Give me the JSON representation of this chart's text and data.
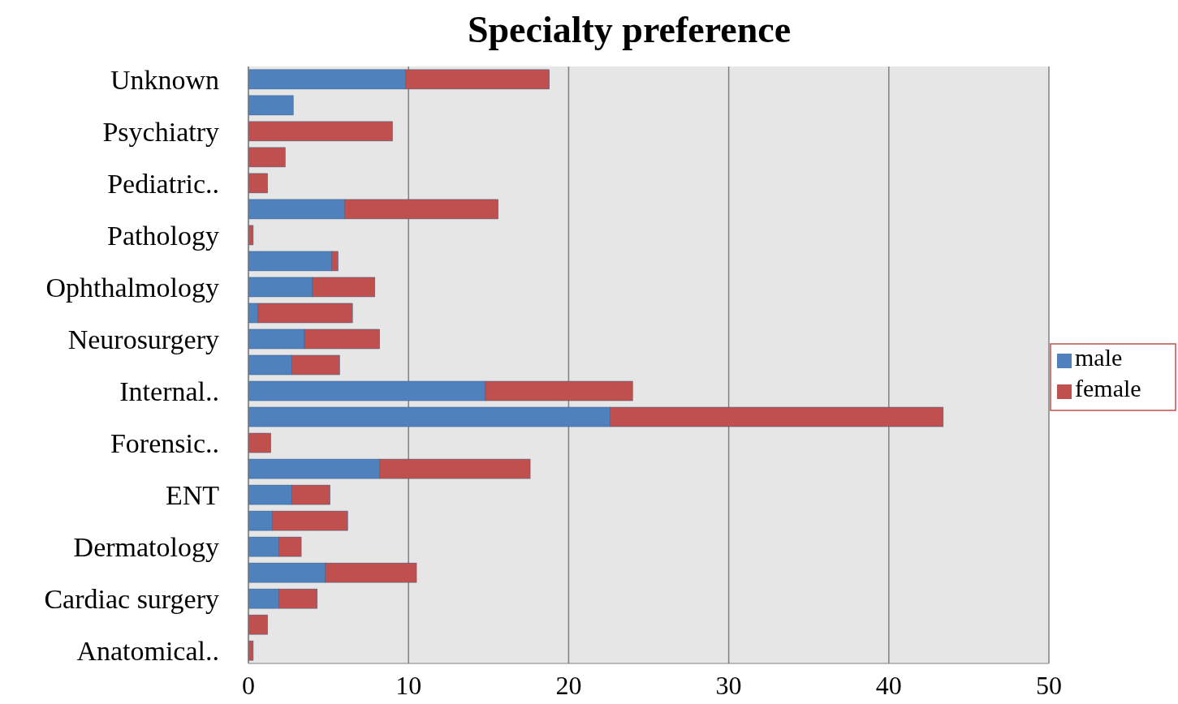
{
  "chart_data": {
    "type": "bar",
    "title": "Specialty preference",
    "orientation": "horizontal",
    "stacked": true,
    "categories": [
      "Unknown",
      null,
      "Psychiatry",
      null,
      "Pediatric..",
      null,
      "Pathology",
      null,
      "Ophthalmology",
      null,
      "Neurosurgery",
      null,
      "Internal..",
      null,
      "Forensic..",
      null,
      "ENT",
      null,
      "Dermatology",
      null,
      "Cardiac surgery",
      null,
      "Anatomical.."
    ],
    "series": [
      {
        "name": "male",
        "color": "#4f81bd",
        "values": [
          9.8,
          2.8,
          null,
          null,
          0,
          6.0,
          0,
          5.2,
          4.0,
          0.6,
          3.5,
          2.7,
          14.8,
          22.6,
          null,
          8.2,
          2.7,
          1.5,
          1.9,
          4.8,
          1.9,
          0,
          0
        ]
      },
      {
        "name": "female",
        "color": "#c0504d",
        "values": [
          9.0,
          0,
          9.0,
          2.3,
          1.2,
          9.6,
          0.3,
          0.4,
          3.9,
          5.9,
          4.7,
          3.0,
          9.2,
          20.8,
          1.4,
          9.4,
          2.4,
          4.7,
          1.4,
          5.7,
          2.4,
          1.2,
          0.3
        ]
      }
    ],
    "xlim": [
      0,
      50
    ],
    "xticks": [
      0,
      10,
      20,
      30,
      40,
      50
    ],
    "grid": "x",
    "legend": "right"
  }
}
